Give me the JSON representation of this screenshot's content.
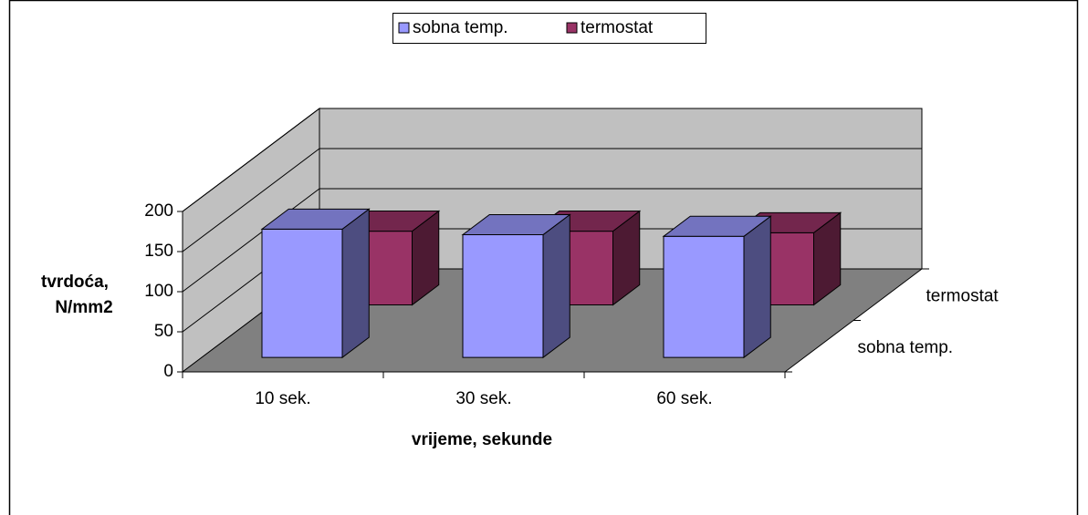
{
  "chart_data": {
    "type": "bar3d",
    "y_label": [
      "tvrdoća,",
      "N/mm2"
    ],
    "x_label": "vrijeme, sekunde",
    "categories": [
      "10 sek.",
      "30 sek.",
      "60 sek."
    ],
    "series": [
      {
        "name": "sobna temp.",
        "color": "#9999ff",
        "values": [
          160,
          153,
          151
        ]
      },
      {
        "name": "termostat",
        "color": "#993366",
        "values": [
          92,
          92,
          90
        ]
      }
    ],
    "ylim": [
      0,
      200
    ],
    "yticks": [
      0,
      50,
      100,
      150,
      200
    ],
    "grid": true,
    "legend": "top"
  }
}
